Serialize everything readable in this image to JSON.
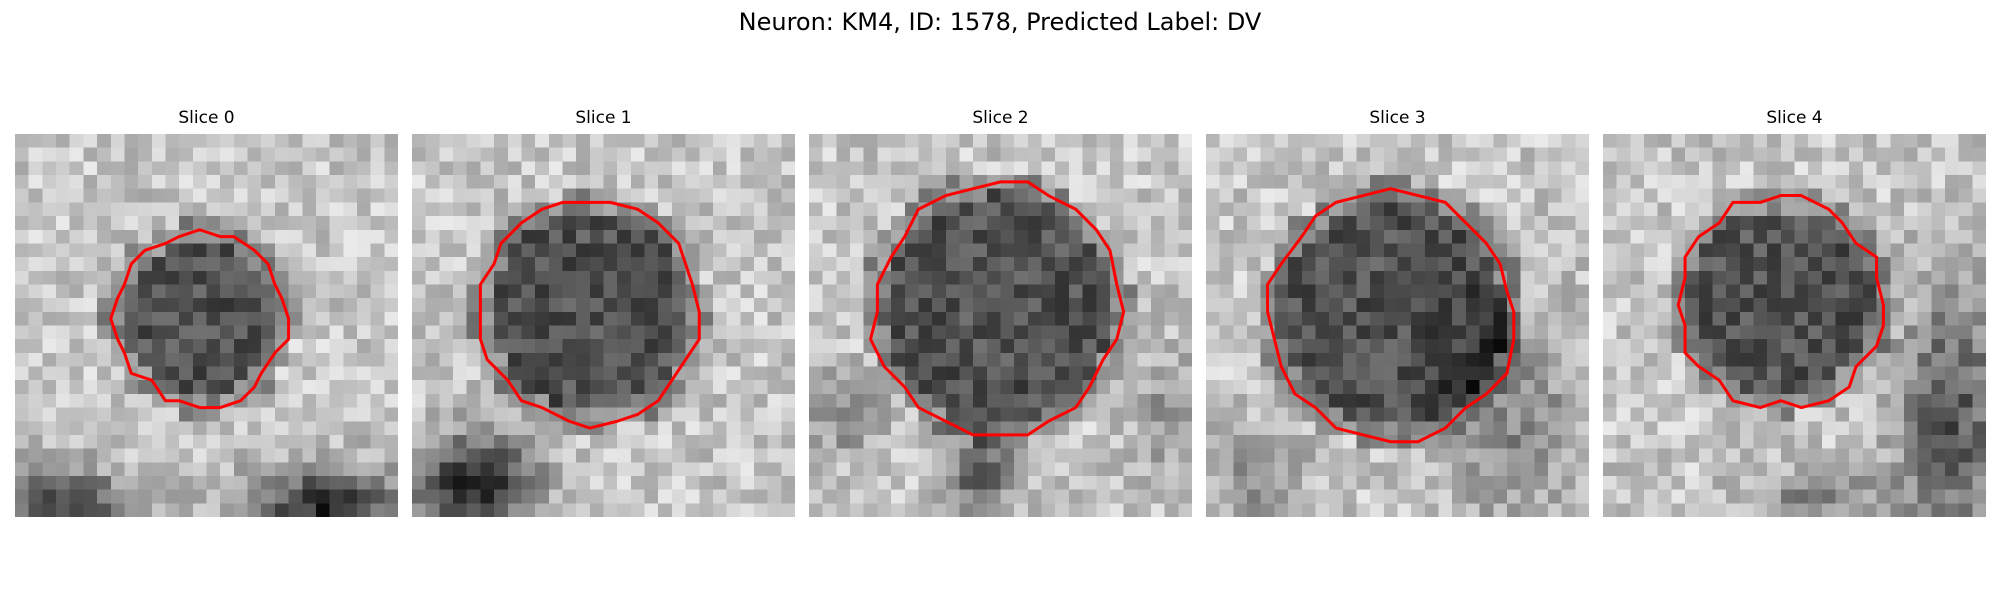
{
  "figure": {
    "title": "Neuron: KM4, ID: 1578, Predicted Label: DV",
    "contour_color": "#ff0000",
    "colormap": "gray",
    "panels": [
      {
        "title": "Slice 0",
        "seed": 11,
        "cx": 13.5,
        "cy": 13.5,
        "r": 5.6,
        "wob": 0.3,
        "dark_bottom": "both"
      },
      {
        "title": "Slice 1",
        "seed": 23,
        "cx": 13.0,
        "cy": 13.0,
        "r": 7.3,
        "wob": 0.3,
        "dark_bottom": "left"
      },
      {
        "title": "Slice 2",
        "seed": 37,
        "cx": 13.8,
        "cy": 12.8,
        "r": 8.4,
        "wob": 0.4,
        "dark_bottom": "stem"
      },
      {
        "title": "Slice 3",
        "seed": 51,
        "cx": 13.6,
        "cy": 13.2,
        "r": 8.3,
        "wob": 0.5,
        "dark_bottom": "busy"
      },
      {
        "title": "Slice 4",
        "seed": 67,
        "cx": 13.0,
        "cy": 12.3,
        "r": 6.8,
        "wob": 0.5,
        "dark_bottom": "right"
      }
    ]
  }
}
